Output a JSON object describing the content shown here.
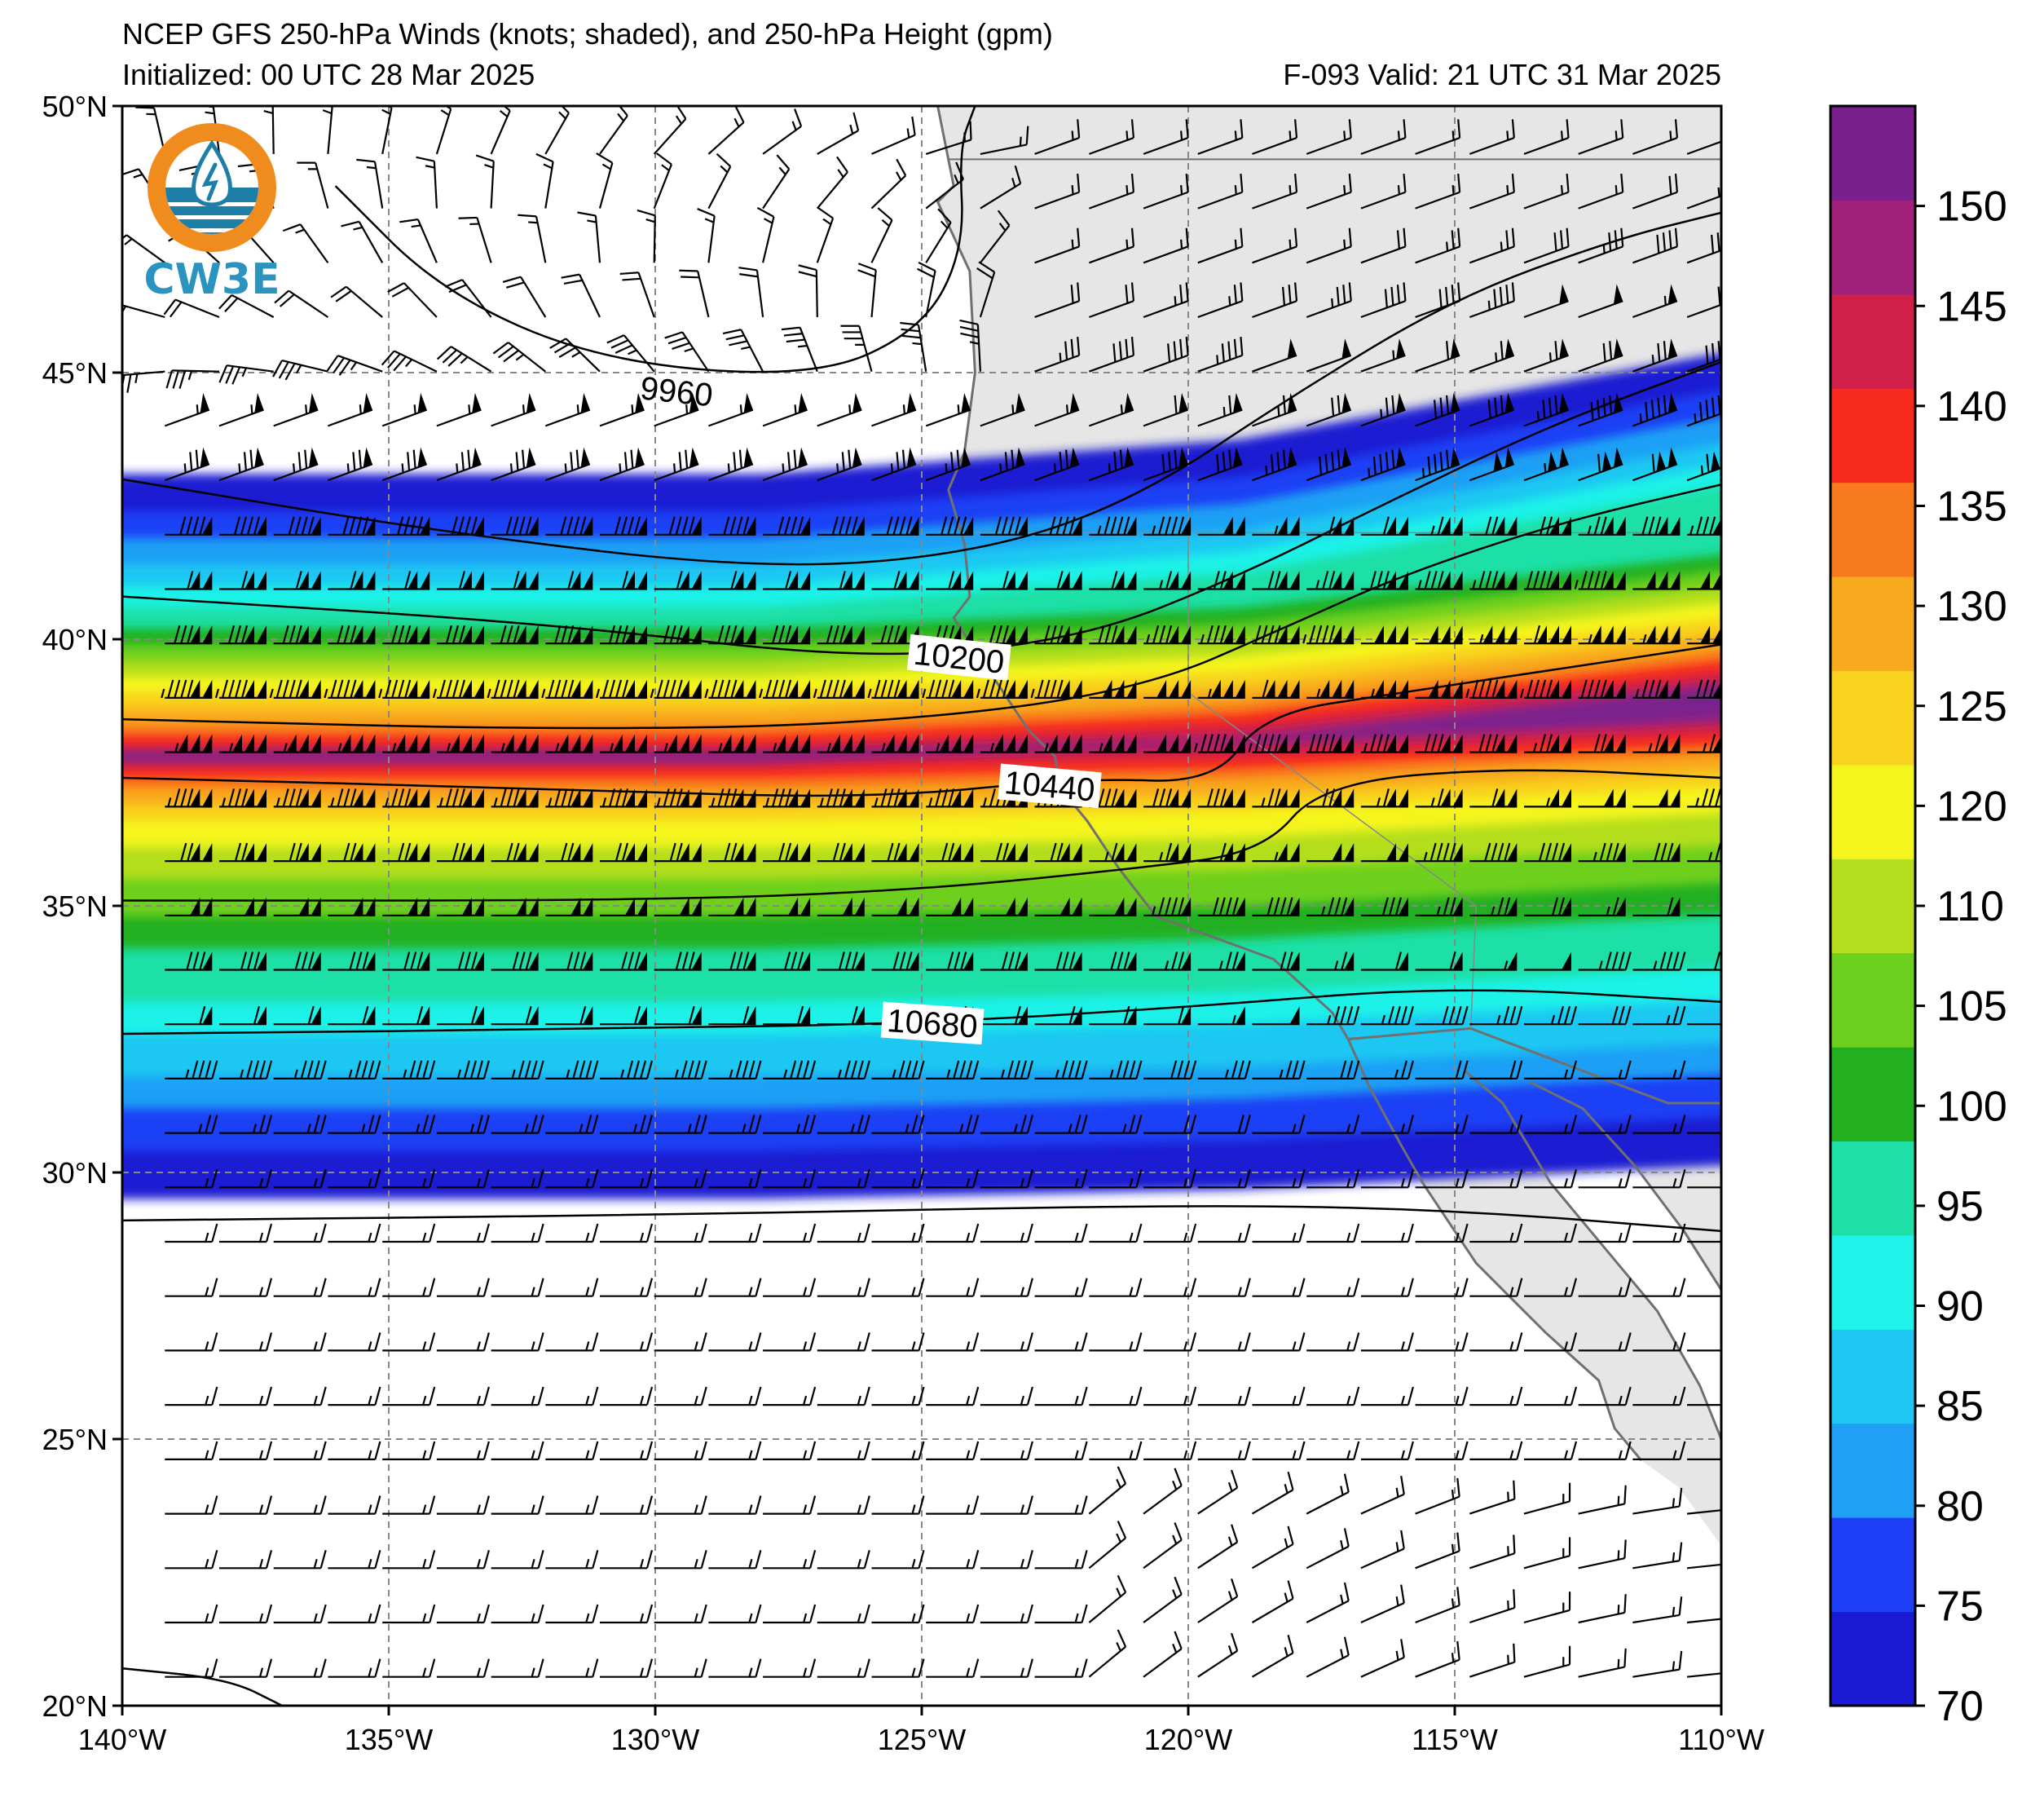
{
  "header": {
    "title": "NCEP GFS 250-hPa Winds (knots; shaded), and 250-hPa Height (gpm)",
    "initialized": "Initialized: 00 UTC 28 Mar 2025",
    "valid": "F-093  Valid: 21 UTC 31 Mar 2025"
  },
  "logo": {
    "text": "CW3E",
    "ring_color": "#f08c1e",
    "wave_color": "#1d7fa8"
  },
  "map": {
    "lon_range": [
      -140,
      -110
    ],
    "lat_range": [
      20,
      50
    ],
    "lat_ticks": [
      "50°N",
      "45°N",
      "40°N",
      "35°N",
      "30°N",
      "25°N",
      "20°N"
    ],
    "lon_ticks": [
      "140°W",
      "135°W",
      "130°W",
      "125°W",
      "120°W",
      "115°W",
      "110°W"
    ],
    "land_color": "#e6e6e6",
    "coast_color": "#707070",
    "contour_labels": [
      "9960",
      "10200",
      "10440",
      "10680"
    ]
  },
  "colorbar": {
    "ticks": [
      "70",
      "75",
      "80",
      "85",
      "90",
      "95",
      "100",
      "105",
      "110",
      "120",
      "125",
      "130",
      "135",
      "140",
      "145",
      "150"
    ],
    "colors": [
      "#1a1ad2",
      "#1e3ff5",
      "#1fa0f5",
      "#1ec8f2",
      "#1ff2e8",
      "#1fe0a6",
      "#22b020",
      "#6ed01e",
      "#b4de1e",
      "#f5f51e",
      "#f8d21e",
      "#f8aa1e",
      "#f87a1e",
      "#f82a1e",
      "#d0204a",
      "#a0207a",
      "#7a208e"
    ]
  }
}
